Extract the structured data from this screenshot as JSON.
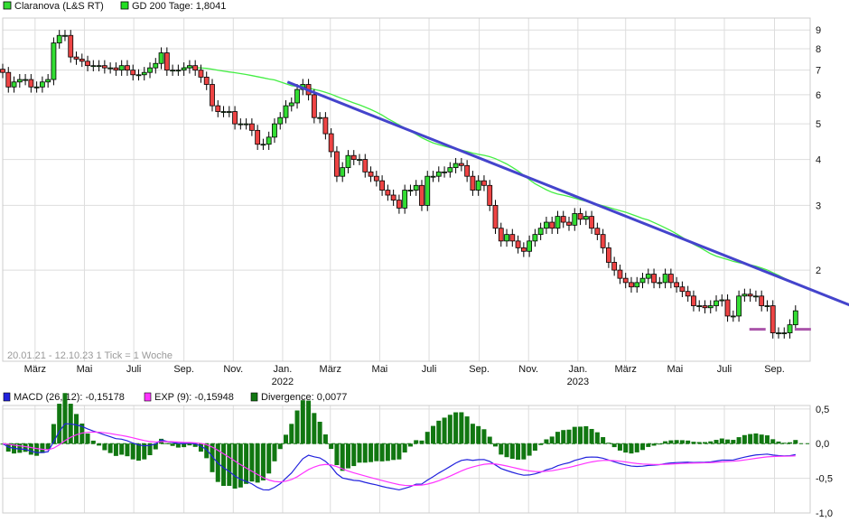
{
  "chart_data": [
    {
      "type": "candlestick",
      "legend": [
        {
          "label": "Claranova (L&S RT)",
          "color": "#33dd33"
        },
        {
          "label": "GD 200 Tage: 1,8041",
          "color": "#22dd22"
        }
      ],
      "range_note": "20.01.21 - 12.10.23   1 Tick = 1 Woche",
      "start_date": "2021-01-20",
      "interval": "week",
      "y_scale": "log",
      "ylim": [
        1.13,
        9.7
      ],
      "y_ticks": [
        2,
        3,
        4,
        5,
        6,
        7,
        8,
        9
      ],
      "grid": true,
      "x_ticks": [
        {
          "label": "März",
          "date": "2021-03-01"
        },
        {
          "label": "Mai",
          "date": "2021-05-01"
        },
        {
          "label": "Juli",
          "date": "2021-07-01"
        },
        {
          "label": "Sep.",
          "date": "2021-09-01"
        },
        {
          "label": "Nov.",
          "date": "2021-11-01"
        },
        {
          "label": "Jan.",
          "year": "2022",
          "date": "2022-01-01"
        },
        {
          "label": "März",
          "date": "2022-03-01"
        },
        {
          "label": "Mai",
          "date": "2022-05-01"
        },
        {
          "label": "Juli",
          "date": "2022-07-01"
        },
        {
          "label": "Sep.",
          "date": "2022-09-01"
        },
        {
          "label": "Nov.",
          "date": "2022-11-01"
        },
        {
          "label": "Jan.",
          "year": "2023",
          "date": "2023-01-01"
        },
        {
          "label": "März",
          "date": "2023-03-01"
        },
        {
          "label": "Mai",
          "date": "2023-05-01"
        },
        {
          "label": "Juli",
          "date": "2023-07-01"
        },
        {
          "label": "Sep.",
          "date": "2023-09-01"
        }
      ],
      "weekly_closes": [
        6.9,
        6.3,
        6.5,
        6.6,
        6.6,
        6.3,
        6.3,
        6.5,
        6.6,
        8.3,
        8.7,
        8.7,
        7.6,
        7.5,
        7.4,
        7.2,
        7.2,
        7.2,
        7.1,
        7.1,
        7.0,
        7.2,
        7.0,
        6.8,
        6.8,
        6.9,
        7.1,
        7.3,
        7.8,
        7.0,
        7.0,
        7.0,
        7.1,
        7.2,
        7.0,
        6.7,
        6.4,
        5.6,
        5.4,
        5.4,
        5.4,
        5.0,
        5.0,
        5.0,
        4.8,
        4.4,
        4.4,
        4.6,
        5.0,
        5.2,
        5.6,
        5.7,
        6.2,
        6.4,
        6.0,
        5.2,
        5.2,
        4.7,
        4.2,
        3.6,
        3.8,
        4.1,
        4.0,
        4.0,
        3.7,
        3.6,
        3.5,
        3.3,
        3.2,
        3.1,
        2.95,
        3.3,
        3.3,
        3.4,
        3.0,
        3.6,
        3.6,
        3.7,
        3.7,
        3.8,
        3.9,
        3.85,
        3.6,
        3.3,
        3.5,
        3.4,
        3.0,
        2.6,
        2.4,
        2.5,
        2.4,
        2.3,
        2.25,
        2.4,
        2.5,
        2.6,
        2.7,
        2.6,
        2.8,
        2.7,
        2.65,
        2.85,
        2.75,
        2.8,
        2.6,
        2.5,
        2.3,
        2.1,
        2.0,
        1.9,
        1.85,
        1.8,
        1.85,
        1.9,
        1.95,
        1.85,
        1.85,
        1.95,
        1.85,
        1.8,
        1.75,
        1.7,
        1.6,
        1.6,
        1.58,
        1.6,
        1.65,
        1.66,
        1.5,
        1.5,
        1.7,
        1.72,
        1.7,
        1.7,
        1.6,
        1.6,
        1.35,
        1.35,
        1.35,
        1.42,
        1.55
      ],
      "moving_average_weeks": 40,
      "trendline": {
        "start": {
          "date": "2022-01-07",
          "value": 6.5
        },
        "end": {
          "date": "2023-12-05",
          "value": 1.6
        },
        "color": "#4444cc"
      },
      "support_markers": [
        {
          "date": "2023-08-11",
          "value": 1.38
        },
        {
          "date": "2023-10-06",
          "value": 1.38
        }
      ],
      "colors": {
        "up": "#33dd33",
        "down": "#ee4444",
        "ma": "#44ee44",
        "support": "#aa55aa"
      }
    },
    {
      "type": "line",
      "legend": [
        {
          "label": "MACD (26, 12): -0,15178",
          "color": "#2222dd"
        },
        {
          "label": "EXP (9): -0,15948",
          "color": "#ff33ff"
        },
        {
          "label": "Divergence: 0,0077",
          "color": "#117711"
        }
      ],
      "ylim": [
        -1.0,
        0.55
      ],
      "y_ticks": [
        {
          "v": 0.5,
          "label": "0,5"
        },
        {
          "v": 0.0,
          "label": "0,0"
        },
        {
          "v": -0.5,
          "label": "-0,5"
        },
        {
          "v": -1.0,
          "label": "-1,0"
        }
      ],
      "grid": true
    }
  ]
}
